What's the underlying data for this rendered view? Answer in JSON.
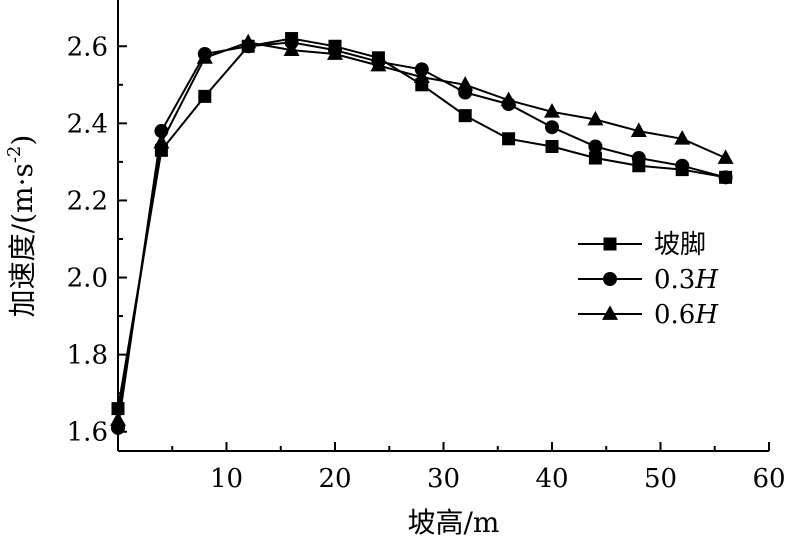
{
  "chart_data": {
    "type": "line",
    "title": "",
    "xlabel": "坡高/m",
    "ylabel_main": "加速度/(m·s",
    "ylabel_sup": "-2",
    "ylabel_tail": ")",
    "xlim": [
      0,
      60
    ],
    "ylim": [
      1.55,
      2.72
    ],
    "x_ticks": [
      10,
      20,
      30,
      40,
      50,
      60
    ],
    "y_ticks": [
      1.6,
      1.8,
      2.0,
      2.2,
      2.4,
      2.6
    ],
    "x_tick_labels": [
      "10",
      "20",
      "30",
      "40",
      "50",
      "60"
    ],
    "y_tick_labels": [
      "1.6",
      "1.8",
      "2.0",
      "2.2",
      "2.4",
      "2.6"
    ],
    "legend_position": "right",
    "series": [
      {
        "name": "坡脚",
        "name_suffix": "",
        "marker": "square",
        "x": [
          0,
          4,
          8,
          12,
          16,
          20,
          24,
          28,
          32,
          36,
          40,
          44,
          48,
          52,
          56
        ],
        "y": [
          1.66,
          2.33,
          2.47,
          2.6,
          2.62,
          2.6,
          2.57,
          2.5,
          2.42,
          2.36,
          2.34,
          2.31,
          2.29,
          2.28,
          2.26
        ]
      },
      {
        "name": "0.3",
        "name_suffix": "H",
        "marker": "circle",
        "x": [
          0,
          4,
          8,
          12,
          16,
          20,
          24,
          28,
          32,
          36,
          40,
          44,
          48,
          52,
          56
        ],
        "y": [
          1.61,
          2.38,
          2.58,
          2.6,
          2.61,
          2.59,
          2.56,
          2.54,
          2.48,
          2.45,
          2.39,
          2.34,
          2.31,
          2.29,
          2.26
        ]
      },
      {
        "name": "0.6",
        "name_suffix": "H",
        "marker": "triangle",
        "x": [
          0,
          4,
          8,
          12,
          16,
          20,
          24,
          28,
          32,
          36,
          40,
          44,
          48,
          52,
          56
        ],
        "y": [
          1.63,
          2.35,
          2.57,
          2.61,
          2.59,
          2.58,
          2.55,
          2.52,
          2.5,
          2.46,
          2.43,
          2.41,
          2.38,
          2.36,
          2.31
        ]
      }
    ]
  }
}
